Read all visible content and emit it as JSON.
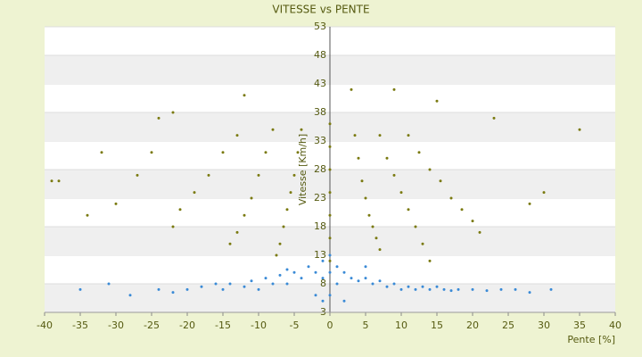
{
  "chart_data": {
    "type": "scatter",
    "title": "VITESSE vs PENTE",
    "x_label": "Pente [%]",
    "y_label": "Vitesse [Km/h]",
    "xlim": [
      -40,
      40
    ],
    "ylim": [
      3,
      53
    ],
    "xticks": [
      -40,
      -35,
      -30,
      -25,
      -20,
      -15,
      -10,
      -5,
      0,
      5,
      10,
      15,
      20,
      25,
      30,
      35,
      40
    ],
    "yticks": [
      3,
      8,
      13,
      18,
      23,
      28,
      33,
      38,
      43,
      48,
      53
    ],
    "grid": true,
    "series": [
      {
        "color": "#7a7a10",
        "x": [
          3.5,
          4,
          4.5,
          5,
          5.5,
          6,
          6.5,
          7,
          7,
          8,
          9,
          10,
          11,
          12,
          13,
          14,
          11,
          12.5,
          14,
          15.5,
          17,
          18.5,
          20,
          21,
          -4,
          -4.5,
          -5,
          -5.5,
          -6,
          -6.5,
          -7,
          -7.5,
          -8,
          -9,
          -10,
          -11,
          -12,
          -13,
          -14,
          -13,
          -15,
          -17,
          -19,
          -21,
          -22,
          -22,
          -25,
          -27,
          -30,
          -34,
          -38,
          0,
          0,
          0,
          0,
          0,
          0,
          0,
          3,
          9,
          15,
          23,
          35,
          -12,
          -24,
          28,
          30,
          -32,
          -39
        ],
        "values": [
          34,
          30,
          26,
          23,
          20,
          18,
          16,
          14,
          34,
          30,
          27,
          24,
          21,
          18,
          15,
          12,
          34,
          31,
          28,
          26,
          23,
          21,
          19,
          17,
          35,
          31,
          27,
          24,
          21,
          18,
          15,
          13,
          35,
          31,
          27,
          23,
          20,
          17,
          15,
          34,
          31,
          27,
          24,
          21,
          18,
          38,
          31,
          27,
          22,
          20,
          26,
          36,
          32,
          28,
          24,
          20,
          16,
          12,
          42,
          42,
          40,
          37,
          35,
          41,
          37,
          22,
          24,
          31,
          26
        ]
      },
      {
        "color": "#3a8ad6",
        "x": [
          -35,
          -31,
          -28,
          -24,
          -22,
          -20,
          -18,
          -16,
          -15,
          -14,
          -12,
          -11,
          -10,
          -9,
          -8,
          -7,
          -6,
          -5,
          -4,
          -3,
          -2,
          -1,
          -1,
          0,
          0,
          0,
          1,
          1,
          2,
          3,
          4,
          5,
          6,
          7,
          8,
          9,
          10,
          11,
          12,
          13,
          14,
          15,
          16,
          17,
          18,
          20,
          22,
          24,
          26,
          28,
          31,
          2,
          -2,
          -6,
          5,
          -1
        ],
        "values": [
          7,
          8,
          6,
          7,
          6.5,
          7,
          7.5,
          8,
          7,
          8,
          7.5,
          8.5,
          7,
          9,
          8,
          9.5,
          8,
          10,
          9,
          11,
          10,
          12,
          9,
          13,
          10,
          6,
          11,
          8,
          10,
          9,
          8.5,
          9,
          8,
          8.5,
          7.5,
          8,
          7,
          7.5,
          7,
          7.5,
          7,
          7.5,
          7,
          6.8,
          7,
          7,
          6.8,
          7,
          7,
          6.5,
          7,
          5,
          6,
          10.5,
          11,
          5
        ]
      }
    ]
  }
}
